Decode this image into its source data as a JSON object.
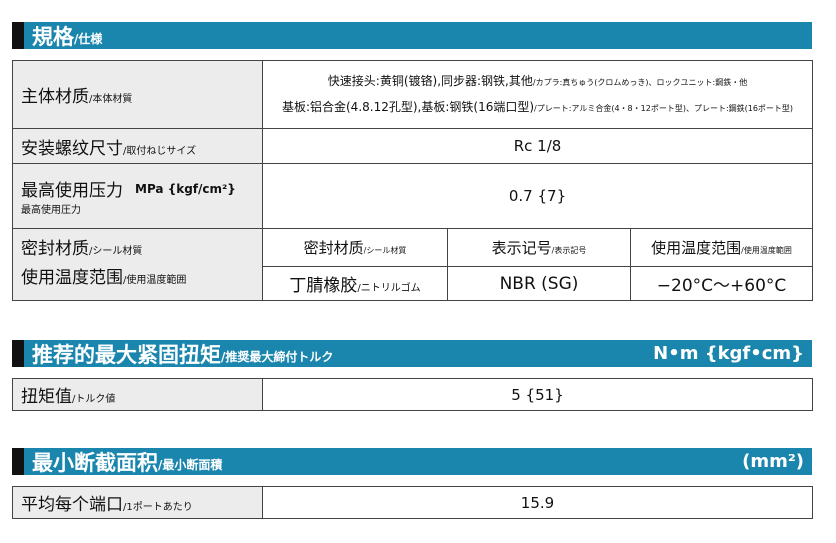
{
  "spec": {
    "title": "規格",
    "title_sub": "/仕様",
    "body": {
      "label": "主体材质",
      "label_sub": "/本体材質",
      "line1": "快速接头:黄铜(镀铬),同步器:钢铁,其他",
      "line1_sub": "/カプラ:真ちゅう(クロムめっき)、ロックユニット:鋼鉄・他",
      "line2": "基板:铝合金(4.8.12孔型),基板:钢铁(16端口型)",
      "line2_sub": "/プレート:アルミ合金(4・8・12ポート型)、プレート:鋼鉄(16ポート型)"
    },
    "thread": {
      "label": "安装螺纹尺寸",
      "label_sub": "/取付ねじサイズ",
      "value": "Rc 1/8"
    },
    "pressure": {
      "label": "最高使用压力",
      "unit": "MPa {kgf/cm²}",
      "label_sub": "最高使用圧力",
      "value": "0.7 {7}"
    },
    "seal": {
      "label1": "密封材质",
      "label1_sub": "/シール材質",
      "label2": "使用温度范围",
      "label2_sub": "/使用温度範囲",
      "headers": [
        {
          "main": "密封材质",
          "sub": "/シール材質"
        },
        {
          "main": "表示记号",
          "sub": "/表示記号"
        },
        {
          "main": "使用温度范围",
          "sub": "/使用温度範囲"
        }
      ],
      "values": [
        {
          "main": "丁腈橡胶",
          "sub": "/ニトリルゴム"
        },
        {
          "main": "NBR (SG)"
        },
        {
          "main": "−20°C〜+60°C"
        }
      ]
    }
  },
  "torque": {
    "title": "推荐的最大紧固扭矩",
    "title_sub": "/推奨最大締付トルク",
    "unit": "N•m {kgf•cm}",
    "label": "扭矩值",
    "label_sub": "/トルク値",
    "value": "5 {51}"
  },
  "area": {
    "title": "最小断截面积",
    "title_sub": "/最小断面積",
    "unit": "(mm²)",
    "label": "平均每个端口",
    "label_sub": "/1ポートあたり",
    "value": "15.9"
  }
}
